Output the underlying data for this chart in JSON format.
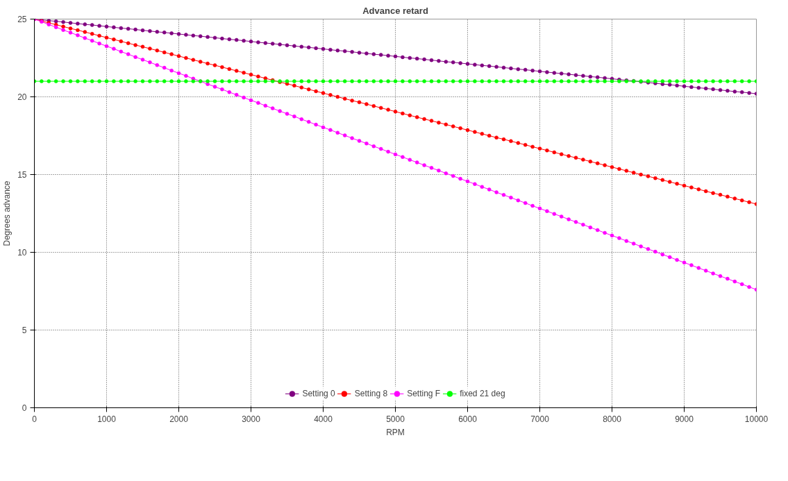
{
  "chart_data": {
    "type": "line",
    "title": "Advance retard",
    "xlabel": "RPM",
    "ylabel": "Degrees advance",
    "x": [
      0,
      100,
      200,
      300,
      400,
      500,
      600,
      700,
      800,
      900,
      1000,
      1100,
      1200,
      1300,
      1400,
      1500,
      1600,
      1700,
      1800,
      1900,
      2000,
      2100,
      2200,
      2300,
      2400,
      2500,
      2600,
      2700,
      2800,
      2900,
      3000,
      3100,
      3200,
      3300,
      3400,
      3500,
      3600,
      3700,
      3800,
      3900,
      4000,
      4100,
      4200,
      4300,
      4400,
      4500,
      4600,
      4700,
      4800,
      4900,
      5000,
      5100,
      5200,
      5300,
      5400,
      5500,
      5600,
      5700,
      5800,
      5900,
      6000,
      6100,
      6200,
      6300,
      6400,
      6500,
      6600,
      6700,
      6800,
      6900,
      7000,
      7100,
      7200,
      7300,
      7400,
      7500,
      7600,
      7700,
      7800,
      7900,
      8000,
      8100,
      8200,
      8300,
      8400,
      8500,
      8600,
      8700,
      8800,
      8900,
      9000,
      9100,
      9200,
      9300,
      9400,
      9500,
      9600,
      9700,
      9800,
      9900,
      10000
    ],
    "series": [
      {
        "name": "Setting 0",
        "color": "#800080",
        "values": [
          25,
          24.95,
          24.9,
          24.86,
          24.81,
          24.76,
          24.71,
          24.66,
          24.62,
          24.57,
          24.52,
          24.47,
          24.42,
          24.38,
          24.33,
          24.28,
          24.23,
          24.18,
          24.14,
          24.09,
          24.04,
          23.99,
          23.94,
          23.9,
          23.85,
          23.8,
          23.75,
          23.7,
          23.66,
          23.61,
          23.56,
          23.51,
          23.46,
          23.42,
          23.37,
          23.32,
          23.27,
          23.22,
          23.18,
          23.13,
          23.08,
          23.03,
          22.98,
          22.94,
          22.89,
          22.84,
          22.79,
          22.74,
          22.7,
          22.65,
          22.6,
          22.55,
          22.5,
          22.46,
          22.41,
          22.36,
          22.31,
          22.26,
          22.22,
          22.17,
          22.12,
          22.07,
          22.02,
          21.98,
          21.93,
          21.88,
          21.83,
          21.78,
          21.74,
          21.69,
          21.64,
          21.59,
          21.54,
          21.5,
          21.45,
          21.4,
          21.35,
          21.3,
          21.26,
          21.21,
          21.16,
          21.11,
          21.06,
          21.02,
          20.97,
          20.92,
          20.87,
          20.82,
          20.78,
          20.73,
          20.68,
          20.63,
          20.58,
          20.54,
          20.49,
          20.44,
          20.39,
          20.34,
          20.3,
          20.25,
          20.2
        ]
      },
      {
        "name": "Setting 8",
        "color": "#ff0000",
        "values": [
          25,
          24.88,
          24.76,
          24.64,
          24.52,
          24.4,
          24.29,
          24.17,
          24.05,
          23.93,
          23.81,
          23.69,
          23.57,
          23.45,
          23.33,
          23.22,
          23.1,
          22.98,
          22.86,
          22.74,
          22.62,
          22.5,
          22.38,
          22.26,
          22.14,
          22.03,
          21.91,
          21.79,
          21.67,
          21.55,
          21.43,
          21.31,
          21.19,
          21.07,
          20.95,
          20.84,
          20.72,
          20.6,
          20.48,
          20.36,
          20.24,
          20.12,
          20,
          19.88,
          19.76,
          19.65,
          19.53,
          19.41,
          19.29,
          19.17,
          19.05,
          18.93,
          18.81,
          18.69,
          18.57,
          18.46,
          18.34,
          18.22,
          18.1,
          17.98,
          17.86,
          17.74,
          17.62,
          17.5,
          17.38,
          17.27,
          17.15,
          17.03,
          16.91,
          16.79,
          16.67,
          16.55,
          16.43,
          16.31,
          16.19,
          16.08,
          15.96,
          15.84,
          15.72,
          15.6,
          15.48,
          15.36,
          15.24,
          15.12,
          15,
          14.89,
          14.77,
          14.65,
          14.53,
          14.41,
          14.29,
          14.17,
          14.05,
          13.93,
          13.81,
          13.7,
          13.58,
          13.46,
          13.34,
          13.22,
          13.1
        ]
      },
      {
        "name": "Setting F",
        "color": "#ff00ff",
        "values": [
          25,
          24.83,
          24.65,
          24.48,
          24.3,
          24.13,
          23.96,
          23.78,
          23.61,
          23.43,
          23.26,
          23.09,
          22.91,
          22.74,
          22.56,
          22.39,
          22.22,
          22.04,
          21.87,
          21.69,
          21.52,
          21.35,
          21.17,
          21,
          20.82,
          20.65,
          20.48,
          20.3,
          20.13,
          19.95,
          19.78,
          19.61,
          19.43,
          19.26,
          19.08,
          18.91,
          18.74,
          18.56,
          18.39,
          18.21,
          18.04,
          17.87,
          17.69,
          17.52,
          17.34,
          17.17,
          17,
          16.82,
          16.65,
          16.47,
          16.3,
          16.13,
          15.95,
          15.78,
          15.6,
          15.43,
          15.26,
          15.08,
          14.91,
          14.73,
          14.56,
          14.39,
          14.21,
          14.04,
          13.86,
          13.69,
          13.52,
          13.34,
          13.17,
          12.99,
          12.82,
          12.65,
          12.47,
          12.3,
          12.12,
          11.95,
          11.78,
          11.6,
          11.43,
          11.25,
          11.08,
          10.91,
          10.73,
          10.56,
          10.38,
          10.21,
          10.04,
          9.86,
          9.69,
          9.51,
          9.34,
          9.17,
          8.99,
          8.82,
          8.64,
          8.47,
          8.3,
          8.12,
          7.95,
          7.77,
          7.6
        ]
      },
      {
        "name": "fixed 21 deg",
        "color": "#00ff00",
        "values": [
          21,
          21,
          21,
          21,
          21,
          21,
          21,
          21,
          21,
          21,
          21,
          21,
          21,
          21,
          21,
          21,
          21,
          21,
          21,
          21,
          21,
          21,
          21,
          21,
          21,
          21,
          21,
          21,
          21,
          21,
          21,
          21,
          21,
          21,
          21,
          21,
          21,
          21,
          21,
          21,
          21,
          21,
          21,
          21,
          21,
          21,
          21,
          21,
          21,
          21,
          21,
          21,
          21,
          21,
          21,
          21,
          21,
          21,
          21,
          21,
          21,
          21,
          21,
          21,
          21,
          21,
          21,
          21,
          21,
          21,
          21,
          21,
          21,
          21,
          21,
          21,
          21,
          21,
          21,
          21,
          21,
          21,
          21,
          21,
          21,
          21,
          21,
          21,
          21,
          21,
          21,
          21,
          21,
          21,
          21,
          21,
          21,
          21,
          21,
          21,
          21
        ]
      }
    ],
    "xlim": [
      0,
      10000
    ],
    "xticks": [
      0,
      1000,
      2000,
      3000,
      4000,
      5000,
      6000,
      7000,
      8000,
      9000,
      10000
    ],
    "ylim": [
      0,
      25
    ],
    "yticks": [
      0,
      5,
      10,
      15,
      20,
      25
    ],
    "grid": true,
    "legend": "bottom",
    "marker": "circle",
    "line_style": "solid"
  }
}
